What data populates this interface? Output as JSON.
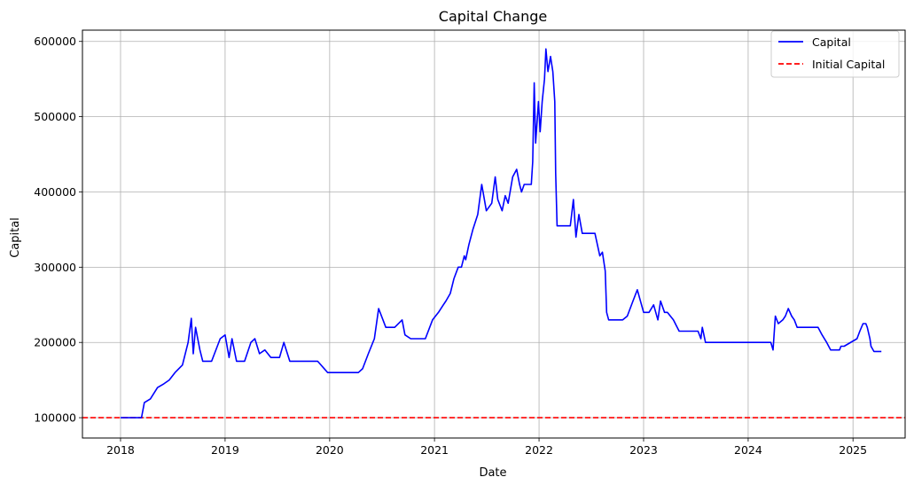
{
  "chart_data": {
    "type": "line",
    "title": "Capital Change",
    "xlabel": "Date",
    "ylabel": "Capital",
    "xlim": [
      "2017-08-21",
      "2025-07-02"
    ],
    "ylim": [
      73000,
      615000
    ],
    "x_ticks": [
      "2018",
      "2019",
      "2020",
      "2021",
      "2022",
      "2023",
      "2024",
      "2025"
    ],
    "y_ticks": [
      100000,
      200000,
      300000,
      400000,
      500000,
      600000
    ],
    "grid": true,
    "legend_position": "top-right",
    "reference_line": {
      "name": "Initial Capital",
      "value": 100000,
      "color": "#ff0000",
      "style": "dashed"
    },
    "series": [
      {
        "name": "Capital",
        "color": "#0000ff",
        "x": [
          "2018-01-01",
          "2018-03-15",
          "2018-03-25",
          "2018-04-15",
          "2018-05-10",
          "2018-06-01",
          "2018-06-20",
          "2018-07-10",
          "2018-08-05",
          "2018-08-25",
          "2018-09-05",
          "2018-09-12",
          "2018-09-20",
          "2018-10-05",
          "2018-10-15",
          "2018-11-15",
          "2018-12-15",
          "2019-01-01",
          "2019-01-15",
          "2019-01-25",
          "2019-02-10",
          "2019-03-10",
          "2019-04-01",
          "2019-04-15",
          "2019-05-01",
          "2019-05-20",
          "2019-06-10",
          "2019-07-10",
          "2019-07-25",
          "2019-08-15",
          "2019-11-20",
          "2019-12-25",
          "2020-01-15",
          "2020-04-10",
          "2020-04-25",
          "2020-05-15",
          "2020-06-05",
          "2020-06-20",
          "2020-07-15",
          "2020-08-15",
          "2020-09-10",
          "2020-09-20",
          "2020-10-10",
          "2020-11-30",
          "2020-12-25",
          "2021-01-15",
          "2021-02-01",
          "2021-02-10",
          "2021-02-25",
          "2021-03-10",
          "2021-03-25",
          "2021-04-05",
          "2021-04-15",
          "2021-04-20",
          "2021-05-01",
          "2021-05-15",
          "2021-06-01",
          "2021-06-15",
          "2021-07-01",
          "2021-07-20",
          "2021-08-01",
          "2021-08-10",
          "2021-08-25",
          "2021-09-05",
          "2021-09-15",
          "2021-10-01",
          "2021-10-15",
          "2021-10-25",
          "2021-11-01",
          "2021-11-10",
          "2021-12-05",
          "2021-12-10",
          "2021-12-15",
          "2021-12-20",
          "2021-12-30",
          "2022-01-05",
          "2022-01-12",
          "2022-01-20",
          "2022-01-25",
          "2022-02-01",
          "2022-02-10",
          "2022-02-18",
          "2022-02-25",
          "2022-02-28",
          "2022-03-05",
          "2022-04-20",
          "2022-05-01",
          "2022-05-10",
          "2022-05-20",
          "2022-06-01",
          "2022-06-20",
          "2022-07-15",
          "2022-08-01",
          "2022-08-10",
          "2022-08-20",
          "2022-08-25",
          "2022-09-01",
          "2022-10-20",
          "2022-11-05",
          "2022-11-25",
          "2022-12-10",
          "2023-01-01",
          "2023-01-20",
          "2023-02-05",
          "2023-02-20",
          "2023-03-01",
          "2023-03-15",
          "2023-03-25",
          "2023-04-15",
          "2023-05-05",
          "2023-06-15",
          "2023-07-10",
          "2023-07-20",
          "2023-07-25",
          "2023-08-05",
          "2023-12-31",
          "2024-03-20",
          "2024-03-28",
          "2024-04-05",
          "2024-04-15",
          "2024-05-01",
          "2024-05-10",
          "2024-05-20",
          "2024-06-01",
          "2024-06-10",
          "2024-06-20",
          "2024-08-15",
          "2024-09-01",
          "2024-09-15",
          "2024-10-01",
          "2024-10-15",
          "2024-11-15",
          "2024-11-20",
          "2024-12-01",
          "2025-01-15",
          "2025-01-25",
          "2025-02-05",
          "2025-02-15",
          "2025-02-20",
          "2025-03-01",
          "2025-03-05",
          "2025-03-15",
          "2025-04-10"
        ],
        "values": [
          100000,
          100000,
          120000,
          125000,
          140000,
          145000,
          150000,
          160000,
          170000,
          200000,
          232000,
          185000,
          220000,
          190000,
          175000,
          175000,
          205000,
          210000,
          180000,
          205000,
          175000,
          175000,
          200000,
          205000,
          185000,
          190000,
          180000,
          180000,
          200000,
          175000,
          175000,
          160000,
          160000,
          160000,
          165000,
          185000,
          205000,
          245000,
          220000,
          220000,
          230000,
          210000,
          205000,
          205000,
          230000,
          240000,
          250000,
          255000,
          265000,
          285000,
          300000,
          300000,
          315000,
          310000,
          330000,
          350000,
          370000,
          410000,
          375000,
          385000,
          420000,
          390000,
          375000,
          395000,
          385000,
          420000,
          430000,
          410000,
          400000,
          410000,
          410000,
          440000,
          545000,
          465000,
          520000,
          480000,
          520000,
          550000,
          590000,
          560000,
          580000,
          560000,
          520000,
          425000,
          355000,
          355000,
          390000,
          340000,
          370000,
          345000,
          345000,
          345000,
          315000,
          320000,
          295000,
          240000,
          230000,
          230000,
          235000,
          255000,
          270000,
          240000,
          240000,
          250000,
          230000,
          255000,
          240000,
          240000,
          230000,
          215000,
          215000,
          215000,
          205000,
          220000,
          200000,
          200000,
          200000,
          190000,
          235000,
          225000,
          230000,
          235000,
          245000,
          235000,
          230000,
          220000,
          220000,
          220000,
          210000,
          200000,
          190000,
          190000,
          195000,
          195000,
          205000,
          215000,
          225000,
          225000,
          220000,
          205000,
          195000,
          188000,
          188000
        ]
      }
    ]
  }
}
